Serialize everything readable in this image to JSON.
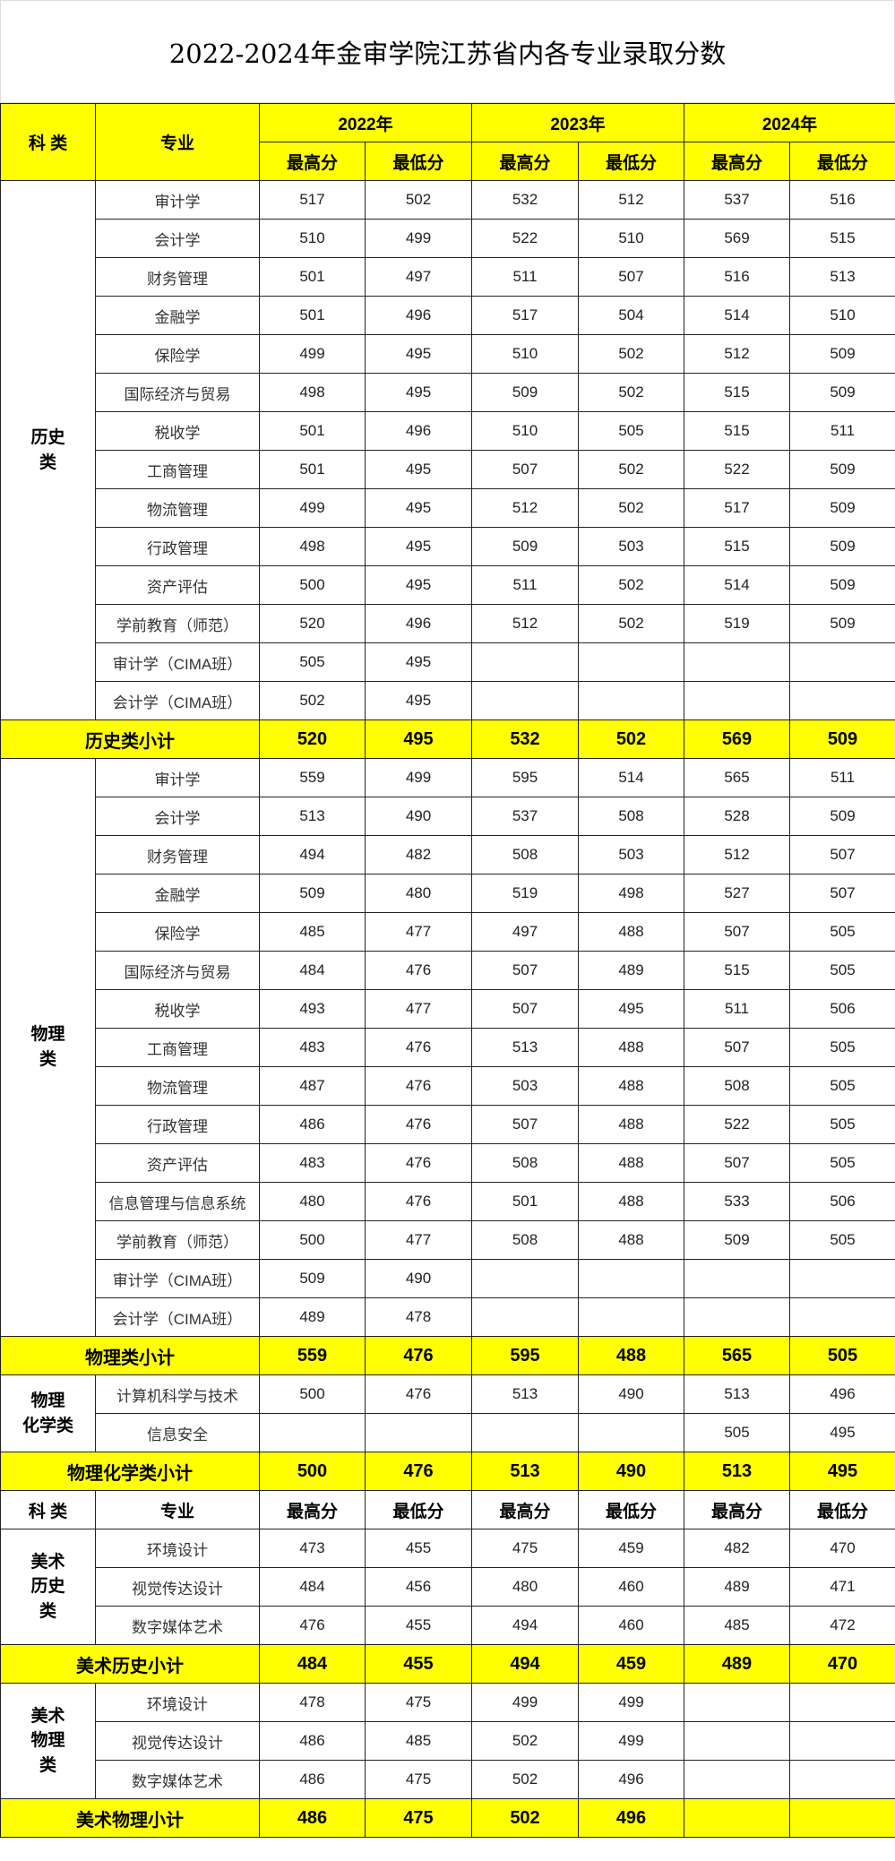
{
  "title": "2022-2024年金审学院江苏省内各专业录取分数",
  "header": {
    "category": "科  类",
    "major": "专业",
    "years": [
      "2022年",
      "2023年",
      "2024年"
    ],
    "max": "最高分",
    "min": "最低分"
  },
  "highlight_color": "#ffff00",
  "sections": [
    {
      "category": "历史\n类",
      "rows": [
        {
          "major": "审计学",
          "scores": [
            "517",
            "502",
            "532",
            "512",
            "537",
            "516"
          ]
        },
        {
          "major": "会计学",
          "scores": [
            "510",
            "499",
            "522",
            "510",
            "569",
            "515"
          ]
        },
        {
          "major": "财务管理",
          "scores": [
            "501",
            "497",
            "511",
            "507",
            "516",
            "513"
          ]
        },
        {
          "major": "金融学",
          "scores": [
            "501",
            "496",
            "517",
            "504",
            "514",
            "510"
          ]
        },
        {
          "major": "保险学",
          "scores": [
            "499",
            "495",
            "510",
            "502",
            "512",
            "509"
          ]
        },
        {
          "major": "国际经济与贸易",
          "scores": [
            "498",
            "495",
            "509",
            "502",
            "515",
            "509"
          ]
        },
        {
          "major": "税收学",
          "scores": [
            "501",
            "496",
            "510",
            "505",
            "515",
            "511"
          ]
        },
        {
          "major": "工商管理",
          "scores": [
            "501",
            "495",
            "507",
            "502",
            "522",
            "509"
          ]
        },
        {
          "major": "物流管理",
          "scores": [
            "499",
            "495",
            "512",
            "502",
            "517",
            "509"
          ]
        },
        {
          "major": "行政管理",
          "scores": [
            "498",
            "495",
            "509",
            "503",
            "515",
            "509"
          ]
        },
        {
          "major": "资产评估",
          "scores": [
            "500",
            "495",
            "511",
            "502",
            "514",
            "509"
          ]
        },
        {
          "major": "学前教育（师范）",
          "scores": [
            "520",
            "496",
            "512",
            "502",
            "519",
            "509"
          ]
        },
        {
          "major": "审计学（CIMA班）",
          "scores": [
            "505",
            "495",
            "",
            "",
            "",
            ""
          ]
        },
        {
          "major": "会计学（CIMA班）",
          "scores": [
            "502",
            "495",
            "",
            "",
            "",
            ""
          ]
        }
      ],
      "subtotal": {
        "label": "历史类小计",
        "scores": [
          "520",
          "495",
          "532",
          "502",
          "569",
          "509"
        ]
      }
    },
    {
      "category": "物理\n类",
      "rows": [
        {
          "major": "审计学",
          "scores": [
            "559",
            "499",
            "595",
            "514",
            "565",
            "511"
          ]
        },
        {
          "major": "会计学",
          "scores": [
            "513",
            "490",
            "537",
            "508",
            "528",
            "509"
          ]
        },
        {
          "major": "财务管理",
          "scores": [
            "494",
            "482",
            "508",
            "503",
            "512",
            "507"
          ]
        },
        {
          "major": "金融学",
          "scores": [
            "509",
            "480",
            "519",
            "498",
            "527",
            "507"
          ]
        },
        {
          "major": "保险学",
          "scores": [
            "485",
            "477",
            "497",
            "488",
            "507",
            "505"
          ]
        },
        {
          "major": "国际经济与贸易",
          "scores": [
            "484",
            "476",
            "507",
            "489",
            "515",
            "505"
          ]
        },
        {
          "major": "税收学",
          "scores": [
            "493",
            "477",
            "507",
            "495",
            "511",
            "506"
          ]
        },
        {
          "major": "工商管理",
          "scores": [
            "483",
            "476",
            "513",
            "488",
            "507",
            "505"
          ]
        },
        {
          "major": "物流管理",
          "scores": [
            "487",
            "476",
            "503",
            "488",
            "508",
            "505"
          ]
        },
        {
          "major": "行政管理",
          "scores": [
            "486",
            "476",
            "507",
            "488",
            "522",
            "505"
          ]
        },
        {
          "major": "资产评估",
          "scores": [
            "483",
            "476",
            "508",
            "488",
            "507",
            "505"
          ]
        },
        {
          "major": "信息管理与信息系统",
          "scores": [
            "480",
            "476",
            "501",
            "488",
            "533",
            "506"
          ]
        },
        {
          "major": "学前教育（师范）",
          "scores": [
            "500",
            "477",
            "508",
            "488",
            "509",
            "505"
          ]
        },
        {
          "major": "审计学（CIMA班）",
          "scores": [
            "509",
            "490",
            "",
            "",
            "",
            ""
          ]
        },
        {
          "major": "会计学（CIMA班）",
          "scores": [
            "489",
            "478",
            "",
            "",
            "",
            ""
          ]
        }
      ],
      "subtotal": {
        "label": "物理类小计",
        "scores": [
          "559",
          "476",
          "595",
          "488",
          "565",
          "505"
        ]
      }
    },
    {
      "category": "物理\n化学类",
      "rows": [
        {
          "major": "计算机科学与技术",
          "scores": [
            "500",
            "476",
            "513",
            "490",
            "513",
            "496"
          ]
        },
        {
          "major": "信息安全",
          "scores": [
            "",
            "",
            "",
            "",
            "505",
            "495"
          ]
        }
      ],
      "subtotal": {
        "label": "物理化学类小计",
        "scores": [
          "500",
          "476",
          "513",
          "490",
          "513",
          "495"
        ]
      },
      "repeat_header_after": true
    },
    {
      "category": "美术\n历史\n类",
      "rows": [
        {
          "major": "环境设计",
          "scores": [
            "473",
            "455",
            "475",
            "459",
            "482",
            "470"
          ]
        },
        {
          "major": "视觉传达设计",
          "scores": [
            "484",
            "456",
            "480",
            "460",
            "489",
            "471"
          ]
        },
        {
          "major": "数字媒体艺术",
          "scores": [
            "476",
            "455",
            "494",
            "460",
            "485",
            "472"
          ]
        }
      ],
      "subtotal": {
        "label": "美术历史小计",
        "scores": [
          "484",
          "455",
          "494",
          "459",
          "489",
          "470"
        ]
      }
    },
    {
      "category": "美术\n物理\n类",
      "rows": [
        {
          "major": "环境设计",
          "scores": [
            "478",
            "475",
            "499",
            "499",
            "",
            ""
          ]
        },
        {
          "major": "视觉传达设计",
          "scores": [
            "486",
            "485",
            "502",
            "499",
            "",
            ""
          ]
        },
        {
          "major": "数字媒体艺术",
          "scores": [
            "486",
            "475",
            "502",
            "496",
            "",
            ""
          ]
        }
      ],
      "subtotal": {
        "label": "美术物理小计",
        "scores": [
          "486",
          "475",
          "502",
          "496",
          "",
          ""
        ]
      }
    }
  ]
}
